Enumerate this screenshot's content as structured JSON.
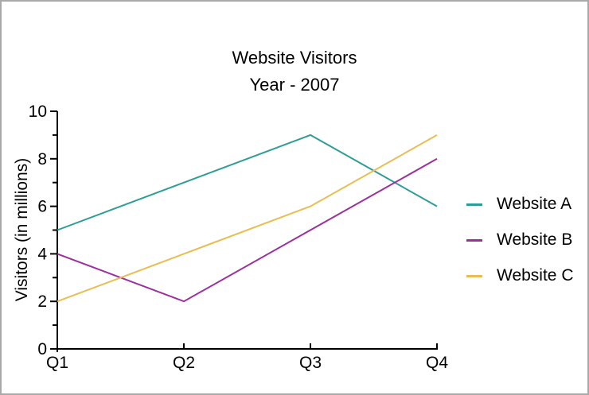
{
  "page": {
    "border_color": "#a9a9a9",
    "background_color": "#ffffff",
    "text_color": "#000000"
  },
  "chart_data": {
    "type": "line",
    "title": "Website Visitors",
    "subtitle": "Year - 2007",
    "xlabel": "",
    "ylabel": "Visitors (in millions)",
    "categories": [
      "Q1",
      "Q2",
      "Q3",
      "Q4"
    ],
    "series": [
      {
        "name": "Website A",
        "color": "#2e9d96",
        "values": [
          5,
          7,
          9,
          6
        ]
      },
      {
        "name": "Website B",
        "color": "#9c2f9e",
        "values": [
          4,
          2,
          5,
          8
        ]
      },
      {
        "name": "Website C",
        "color": "#e8be52",
        "values": [
          2,
          4,
          6,
          9
        ]
      }
    ],
    "ylim": [
      0,
      10
    ],
    "y_major_step": 2,
    "y_minor_step": 1,
    "y_tick_labels": [
      "0",
      "2",
      "4",
      "6",
      "8",
      "10"
    ],
    "grid": false,
    "legend_position": "right",
    "point_markers": false
  }
}
